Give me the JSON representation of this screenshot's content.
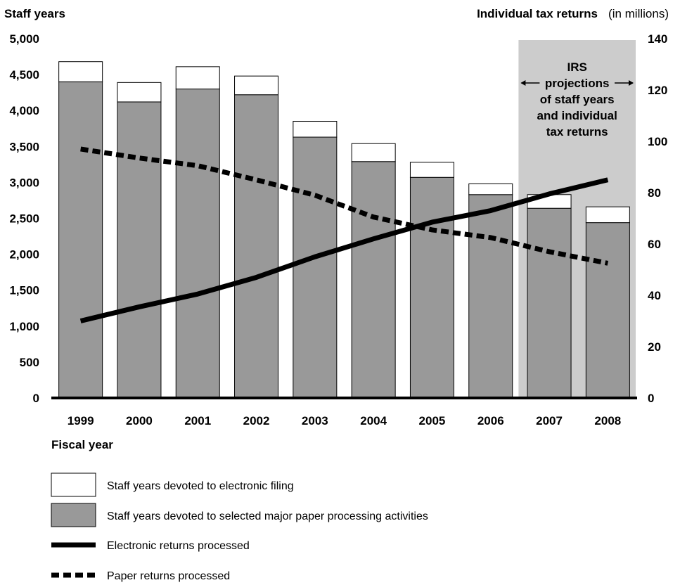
{
  "chart_data": {
    "type": "bar",
    "left_axis_title": "Staff years",
    "right_axis_title": "Individual tax returns",
    "right_axis_title_unit": "(in millions)",
    "xlabel": "Fiscal year",
    "categories": [
      "1999",
      "2000",
      "2001",
      "2002",
      "2003",
      "2004",
      "2005",
      "2006",
      "2007",
      "2008"
    ],
    "y_left_ticks": [
      "5,000",
      "4,500",
      "4,000",
      "3,500",
      "3,000",
      "2,500",
      "2,000",
      "1,500",
      "1,000",
      "500",
      "0"
    ],
    "y_right_ticks": [
      "140",
      "120",
      "100",
      "80",
      "60",
      "40",
      "20",
      "0"
    ],
    "ylim_left": [
      0,
      5000
    ],
    "ylim_right": [
      0,
      140
    ],
    "stacked": true,
    "series": [
      {
        "name": "Staff years devoted to selected major paper processing activities",
        "axis": "left",
        "kind": "bar",
        "color": "#999999",
        "values": [
          4400,
          4120,
          4300,
          4220,
          3630,
          3290,
          3070,
          2830,
          2640,
          2440
        ]
      },
      {
        "name": "Staff years devoted to electronic filing",
        "axis": "left",
        "kind": "bar",
        "color": "#ffffff",
        "values": [
          280,
          270,
          310,
          260,
          220,
          250,
          210,
          150,
          190,
          220
        ]
      },
      {
        "name": "Electronic returns processed",
        "axis": "right",
        "kind": "line",
        "style": "solid",
        "values": [
          30,
          35.5,
          40.5,
          47,
          55,
          62,
          68.5,
          73,
          79.5,
          85
        ]
      },
      {
        "name": "Paper returns processed",
        "axis": "right",
        "kind": "line",
        "style": "dashed",
        "values": [
          97,
          93.5,
          90.5,
          85,
          79,
          70.5,
          65.5,
          62.5,
          57,
          52.5
        ]
      }
    ],
    "projection": {
      "from": "2007",
      "to": "2008",
      "label_lines": [
        "IRS",
        "projections",
        "of staff years",
        "and individual",
        "tax returns"
      ],
      "shade_color": "#cccccc"
    },
    "grid": false,
    "legend_position": "bottom"
  }
}
